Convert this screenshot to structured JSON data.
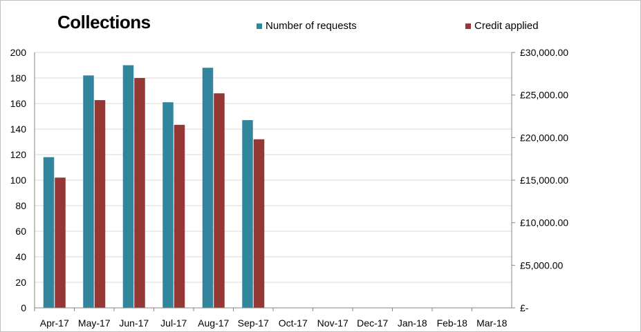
{
  "chart_data": {
    "type": "bar",
    "title": "Collections",
    "categories": [
      "Apr-17",
      "May-17",
      "Jun-17",
      "Jul-17",
      "Aug-17",
      "Sep-17",
      "Oct-17",
      "Nov-17",
      "Dec-17",
      "Jan-18",
      "Feb-18",
      "Mar-18"
    ],
    "series": [
      {
        "name": "Number of requests",
        "axis": "left",
        "color": "#31859c",
        "values": [
          118,
          182,
          190,
          161,
          188,
          147,
          null,
          null,
          null,
          null,
          null,
          null
        ]
      },
      {
        "name": "Credit applied",
        "axis": "right",
        "color": "#953735",
        "values": [
          15300,
          24400,
          27000,
          21500,
          25200,
          19800,
          null,
          null,
          null,
          null,
          null,
          null
        ]
      }
    ],
    "y_left": {
      "min": 0,
      "max": 200,
      "step": 20,
      "tick_labels": [
        "0",
        "20",
        "40",
        "60",
        "80",
        "100",
        "120",
        "140",
        "160",
        "180",
        "200"
      ]
    },
    "y_right": {
      "min": 0,
      "max": 30000,
      "step": 5000,
      "tick_labels": [
        "£-",
        "£5,000.00",
        "£10,000.00",
        "£15,000.00",
        "£20,000.00",
        "£25,000.00",
        "£30,000.00"
      ]
    },
    "grid": true,
    "legend_position": "top"
  }
}
